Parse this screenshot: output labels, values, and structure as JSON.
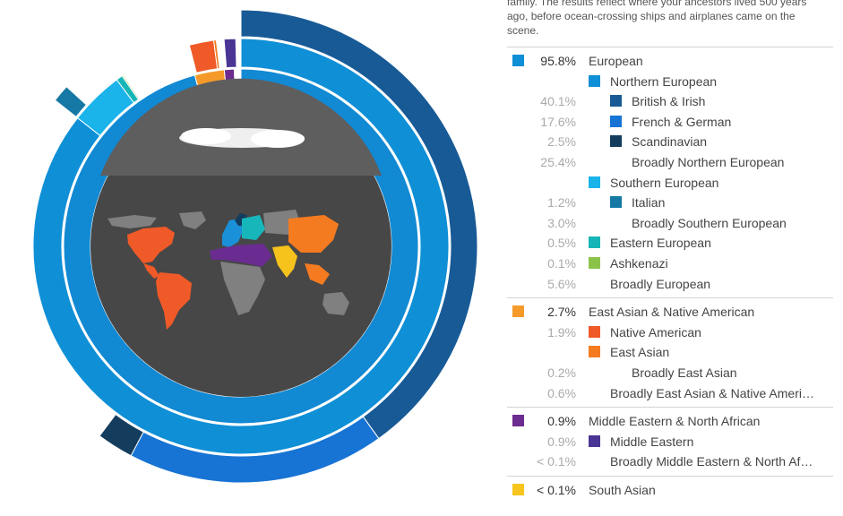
{
  "intro_text": "family. The results reflect where your ancestors lived 500 years ago, before ocean-crossing ships and airplanes came on the scene.",
  "groups": [
    {
      "rows": [
        {
          "level": 0,
          "pct": "95.8%",
          "label": "European",
          "color": "#0f8fd6"
        },
        {
          "level": 1,
          "pct": "",
          "label": "Northern European",
          "color": "#0f8fd6"
        },
        {
          "level": 2,
          "pct": "40.1%",
          "label": "British & Irish",
          "color": "#185a96"
        },
        {
          "level": 2,
          "pct": "17.6%",
          "label": "French & German",
          "color": "#1773d4"
        },
        {
          "level": 2,
          "pct": "2.5%",
          "label": "Scandinavian",
          "color": "#143c5c"
        },
        {
          "level": 2,
          "pct": "25.4%",
          "label": "Broadly Northern European",
          "color": ""
        },
        {
          "level": 1,
          "pct": "",
          "label": "Southern European",
          "color": "#1ab3ea"
        },
        {
          "level": 2,
          "pct": "1.2%",
          "label": "Italian",
          "color": "#1678a4"
        },
        {
          "level": 2,
          "pct": "3.0%",
          "label": "Broadly Southern European",
          "color": ""
        },
        {
          "level": 1,
          "pct": "0.5%",
          "label": "Eastern European",
          "color": "#16b5b8"
        },
        {
          "level": 1,
          "pct": "0.1%",
          "label": "Ashkenazi",
          "color": "#8bc34a"
        },
        {
          "level": 1,
          "pct": "5.6%",
          "label": "Broadly European",
          "color": ""
        }
      ]
    },
    {
      "rows": [
        {
          "level": 0,
          "pct": "2.7%",
          "label": "East Asian & Native American",
          "color": "#f59a2a"
        },
        {
          "level": 1,
          "pct": "1.9%",
          "label": "Native American",
          "color": "#ef5a28"
        },
        {
          "level": 1,
          "pct": "",
          "label": "East Asian",
          "color": "#f47b20"
        },
        {
          "level": 2,
          "pct": "0.2%",
          "label": "Broadly East Asian",
          "color": ""
        },
        {
          "level": 1,
          "pct": "0.6%",
          "label": "Broadly East Asian & Native Ameri…",
          "color": ""
        }
      ]
    },
    {
      "rows": [
        {
          "level": 0,
          "pct": "0.9%",
          "label": "Middle Eastern & North African",
          "color": "#6d2c8f"
        },
        {
          "level": 1,
          "pct": "0.9%",
          "label": "Middle Eastern",
          "color": "#4a3594"
        },
        {
          "level": 1,
          "pct": "< 0.1%",
          "label": "Broadly Middle Eastern & North Af…",
          "color": ""
        }
      ]
    },
    {
      "rows": [
        {
          "level": 0,
          "pct": "< 0.1%",
          "label": "South Asian",
          "color": "#f7c51e"
        }
      ]
    }
  ],
  "chart_data": {
    "type": "pie",
    "rings": [
      {
        "ring": "region",
        "slices": [
          {
            "label": "European",
            "value": 95.8,
            "color": "#1189d3"
          },
          {
            "label": "East Asian & Native American",
            "value": 2.7,
            "color": "#f59a2a"
          },
          {
            "label": "Middle Eastern & North African",
            "value": 0.9,
            "color": "#6d2c8f"
          },
          {
            "label": "South Asian",
            "value": 0.05,
            "color": "#f7c51e"
          }
        ]
      },
      {
        "ring": "subregion",
        "slices": [
          {
            "label": "Northern European",
            "value": 85.6,
            "color": "#0f8fd6"
          },
          {
            "label": "Southern European",
            "value": 4.2,
            "color": "#1ab3ea"
          },
          {
            "label": "Eastern European",
            "value": 0.5,
            "color": "#16b5b8"
          },
          {
            "label": "Ashkenazi",
            "value": 0.1,
            "color": "#8bc34a"
          },
          {
            "label": "Broadly European",
            "value": 5.6,
            "color": ""
          },
          {
            "label": "Native American",
            "value": 1.9,
            "color": "#ef5a28"
          },
          {
            "label": "East Asian",
            "value": 0.2,
            "color": "#f47b20"
          },
          {
            "label": "Broadly East Asian & Native American",
            "value": 0.6,
            "color": ""
          },
          {
            "label": "Middle Eastern",
            "value": 0.9,
            "color": "#4a3594"
          },
          {
            "label": "Broadly Middle Eastern & North African",
            "value": 0.05,
            "color": ""
          }
        ]
      },
      {
        "ring": "population",
        "slices": [
          {
            "label": "British & Irish",
            "value": 40.1,
            "color": "#185a96"
          },
          {
            "label": "French & German",
            "value": 17.6,
            "color": "#1773d4"
          },
          {
            "label": "Scandinavian",
            "value": 2.5,
            "color": "#143c5c"
          },
          {
            "label": "Broadly Northern European",
            "value": 25.4,
            "color": ""
          },
          {
            "label": "Italian",
            "value": 1.2,
            "color": "#1678a4"
          },
          {
            "label": "Broadly Southern European",
            "value": 3.0,
            "color": ""
          }
        ]
      }
    ],
    "map_region_colors": {
      "land": "#808080",
      "americas": "#f05a28",
      "europe": "#1a90d8",
      "eastern_europe": "#17b6ba",
      "middle_east": "#6b2c91",
      "east_asia": "#f47b20",
      "south_asia": "#f6c21c"
    }
  }
}
